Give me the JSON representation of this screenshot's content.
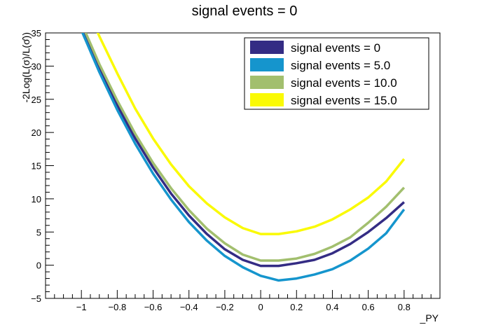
{
  "chart_data": {
    "type": "line",
    "title": "signal events = 0",
    "xlabel": "_PY",
    "ylabel": "-2Log(L(σ)/L(σ̂))",
    "xlim": [
      -1.2,
      1.0
    ],
    "ylim": [
      -5,
      35
    ],
    "xticks": [
      -1,
      -0.8,
      -0.6,
      -0.4,
      -0.2,
      0,
      0.2,
      0.4,
      0.6,
      0.8
    ],
    "xtick_labels": [
      "−1",
      "−0.8",
      "−0.6",
      "−0.4",
      "−0.2",
      "0",
      "0.2",
      "0.4",
      "0.6",
      "0.8"
    ],
    "yticks": [
      -5,
      0,
      5,
      10,
      15,
      20,
      25,
      30,
      35
    ],
    "ytick_labels": [
      "−5",
      "0",
      "5",
      "10",
      "15",
      "20",
      "25",
      "30",
      "35"
    ],
    "grid": false,
    "legend_position": "top-right",
    "x": [
      -1.0,
      -0.9,
      -0.8,
      -0.7,
      -0.6,
      -0.5,
      -0.4,
      -0.3,
      -0.2,
      -0.1,
      0.0,
      0.1,
      0.2,
      0.3,
      0.4,
      0.5,
      0.6,
      0.7,
      0.8
    ],
    "series": [
      {
        "name": "signal events = 0",
        "color": "#342c84",
        "values": [
          35.6,
          29.6,
          24.1,
          19.1,
          14.7,
          10.8,
          7.5,
          4.7,
          2.4,
          0.8,
          -0.1,
          -0.1,
          0.3,
          0.8,
          1.8,
          3.2,
          5.0,
          7.1,
          9.5
        ]
      },
      {
        "name": "signal events = 5.0",
        "color": "#1595cd",
        "values": [
          35.4,
          29.1,
          23.4,
          18.3,
          13.8,
          9.9,
          6.5,
          3.7,
          1.4,
          -0.3,
          -1.6,
          -2.3,
          -2.0,
          -1.4,
          -0.6,
          0.7,
          2.5,
          4.8,
          8.4
        ]
      },
      {
        "name": "signal events = 10.0",
        "color": "#a2bf6e",
        "values": [
          36.5,
          30.3,
          24.8,
          19.8,
          15.4,
          11.6,
          8.3,
          5.5,
          3.3,
          1.6,
          0.7,
          0.7,
          1.0,
          1.7,
          2.8,
          4.2,
          6.4,
          8.8,
          11.7
        ]
      },
      {
        "name": "signal events = 15.0",
        "color": "#fafa05",
        "values": [
          40.5,
          34.5,
          28.9,
          23.6,
          19.1,
          15.2,
          11.9,
          9.3,
          7.2,
          5.6,
          4.7,
          4.7,
          5.1,
          5.8,
          6.9,
          8.4,
          10.2,
          12.6,
          16.0
        ]
      }
    ]
  }
}
